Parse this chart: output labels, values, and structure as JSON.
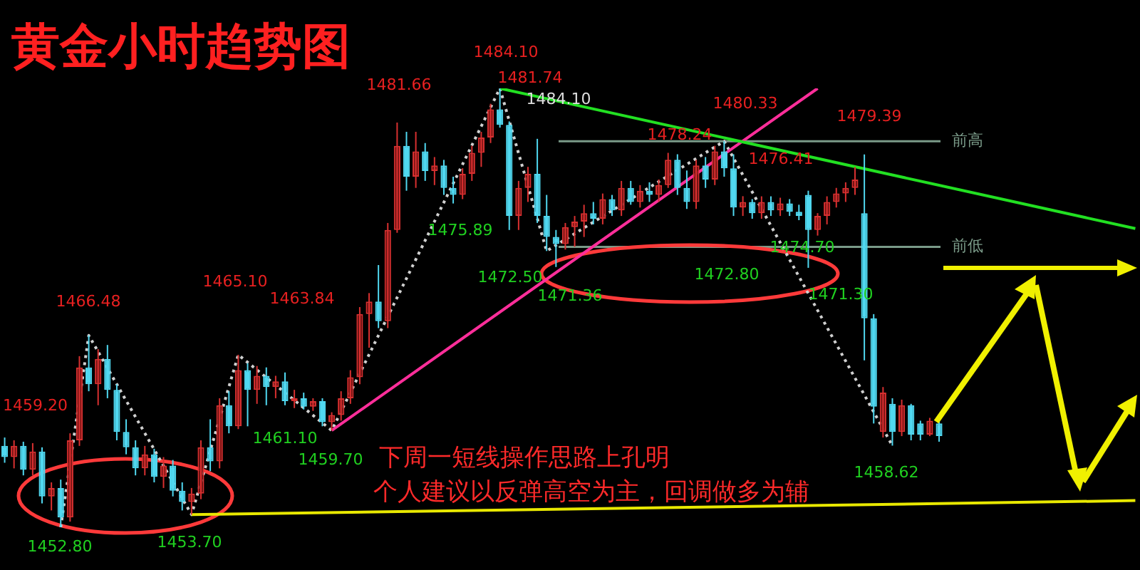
{
  "chart_data": {
    "type": "candlestick",
    "title": "黄金小时趋势图",
    "tick_labels": false,
    "categories": [
      null,
      null,
      null,
      null,
      null,
      null,
      null,
      null,
      null,
      null,
      null,
      null,
      null,
      null,
      null,
      null,
      null,
      null,
      null,
      null,
      null,
      null,
      null,
      null,
      null,
      null,
      null,
      null,
      null,
      null,
      null,
      null,
      null,
      null,
      null,
      null,
      null,
      null,
      null,
      null,
      null,
      null,
      null,
      null,
      null,
      null,
      null,
      null,
      null,
      null,
      null,
      null,
      null,
      null,
      null,
      null,
      null,
      null,
      null,
      null,
      null,
      null,
      null,
      null,
      null,
      null,
      null,
      null,
      null,
      null,
      null,
      null,
      null,
      null,
      null,
      null,
      null,
      null,
      null,
      null,
      null,
      null,
      null,
      null,
      null,
      null,
      null,
      null,
      null,
      null,
      null,
      null,
      null,
      null,
      null,
      null,
      null,
      null,
      null,
      null,
      null,
      null,
      null,
      null,
      null,
      null,
      null,
      null,
      null,
      null,
      null,
      null,
      null,
      null,
      null,
      null,
      null,
      null,
      null,
      null,
      null,
      null
    ],
    "ohlc": [
      [
        1458.6,
        1459.2,
        1457.4,
        1457.8
      ],
      [
        1457.8,
        1459.0,
        1457.0,
        1458.6
      ],
      [
        1458.6,
        1458.9,
        1456.5,
        1456.9
      ],
      [
        1456.9,
        1458.8,
        1456.5,
        1458.2
      ],
      [
        1458.2,
        1458.5,
        1454.5,
        1455.0
      ],
      [
        1455.0,
        1456.0,
        1454.0,
        1455.6
      ],
      [
        1455.6,
        1456.2,
        1452.8,
        1453.5
      ],
      [
        1453.5,
        1459.5,
        1453.2,
        1459.0
      ],
      [
        1459.0,
        1465.0,
        1458.6,
        1464.2
      ],
      [
        1464.2,
        1466.48,
        1462.5,
        1463.0
      ],
      [
        1463.0,
        1465.5,
        1461.5,
        1464.8
      ],
      [
        1464.8,
        1465.8,
        1462.0,
        1462.6
      ],
      [
        1462.6,
        1463.0,
        1459.0,
        1459.6
      ],
      [
        1459.6,
        1460.5,
        1458.0,
        1458.5
      ],
      [
        1458.5,
        1459.0,
        1456.5,
        1457.0
      ],
      [
        1457.0,
        1458.6,
        1456.5,
        1458.0
      ],
      [
        1458.0,
        1458.4,
        1456.0,
        1456.4
      ],
      [
        1456.4,
        1457.8,
        1455.6,
        1457.2
      ],
      [
        1457.2,
        1457.6,
        1455.0,
        1455.4
      ],
      [
        1455.4,
        1456.0,
        1454.0,
        1454.6
      ],
      [
        1454.6,
        1455.6,
        1453.7,
        1455.2
      ],
      [
        1455.2,
        1459.0,
        1454.8,
        1458.5
      ],
      [
        1458.5,
        1460.5,
        1456.8,
        1457.5
      ],
      [
        1457.5,
        1462.0,
        1457.0,
        1461.5
      ],
      [
        1461.5,
        1462.5,
        1459.5,
        1460.0
      ],
      [
        1460.0,
        1465.1,
        1459.8,
        1464.0
      ],
      [
        1464.0,
        1464.5,
        1460.0,
        1462.6
      ],
      [
        1462.6,
        1464.3,
        1461.6,
        1463.6
      ],
      [
        1463.6,
        1464.2,
        1461.5,
        1462.8
      ],
      [
        1462.8,
        1463.6,
        1462.0,
        1463.2
      ],
      [
        1463.2,
        1463.84,
        1461.5,
        1461.8
      ],
      [
        1461.8,
        1462.6,
        1461.3,
        1462.0
      ],
      [
        1462.0,
        1462.4,
        1461.2,
        1461.4
      ],
      [
        1461.4,
        1462.0,
        1461.1,
        1461.8
      ],
      [
        1461.8,
        1462.0,
        1460.0,
        1460.3
      ],
      [
        1460.3,
        1461.0,
        1459.7,
        1460.8
      ],
      [
        1460.8,
        1462.5,
        1460.4,
        1462.0
      ],
      [
        1462.0,
        1464.0,
        1461.6,
        1463.5
      ],
      [
        1463.5,
        1468.5,
        1463.0,
        1468.0
      ],
      [
        1468.0,
        1469.5,
        1465.6,
        1468.9
      ],
      [
        1468.9,
        1471.5,
        1467.0,
        1467.5
      ],
      [
        1467.5,
        1474.5,
        1467.0,
        1474.0
      ],
      [
        1474.0,
        1481.66,
        1473.8,
        1480.0
      ],
      [
        1480.0,
        1481.0,
        1476.8,
        1477.8
      ],
      [
        1477.8,
        1481.0,
        1477.0,
        1479.6
      ],
      [
        1479.6,
        1480.2,
        1477.5,
        1478.2
      ],
      [
        1478.2,
        1479.2,
        1477.2,
        1478.6
      ],
      [
        1478.6,
        1479.0,
        1476.5,
        1477.0
      ],
      [
        1477.0,
        1477.8,
        1475.89,
        1476.5
      ],
      [
        1476.5,
        1478.4,
        1476.2,
        1478.0
      ],
      [
        1478.0,
        1480.0,
        1477.5,
        1479.5
      ],
      [
        1479.5,
        1481.0,
        1478.5,
        1480.6
      ],
      [
        1480.6,
        1483.0,
        1480.2,
        1482.6
      ],
      [
        1482.6,
        1484.1,
        1481.3,
        1481.5
      ],
      [
        1481.5,
        1481.74,
        1474.0,
        1475.0
      ],
      [
        1475.0,
        1477.5,
        1474.0,
        1477.0
      ],
      [
        1477.0,
        1478.5,
        1476.0,
        1478.0
      ],
      [
        1478.0,
        1480.5,
        1474.5,
        1475.0
      ],
      [
        1475.0,
        1476.5,
        1472.5,
        1473.5
      ],
      [
        1473.5,
        1474.0,
        1471.36,
        1473.0
      ],
      [
        1473.0,
        1474.5,
        1472.6,
        1474.2
      ],
      [
        1474.2,
        1475.0,
        1472.8,
        1474.6
      ],
      [
        1474.6,
        1475.8,
        1473.5,
        1475.2
      ],
      [
        1475.2,
        1476.0,
        1474.4,
        1474.8
      ],
      [
        1474.8,
        1476.6,
        1474.4,
        1476.2
      ],
      [
        1476.2,
        1476.5,
        1475.0,
        1475.4
      ],
      [
        1475.4,
        1477.5,
        1475.0,
        1477.0
      ],
      [
        1477.0,
        1477.5,
        1475.8,
        1476.0
      ],
      [
        1476.0,
        1477.2,
        1475.6,
        1476.8
      ],
      [
        1476.8,
        1477.4,
        1476.0,
        1476.5
      ],
      [
        1476.5,
        1477.6,
        1476.0,
        1477.2
      ],
      [
        1477.2,
        1479.5,
        1477.0,
        1479.0
      ],
      [
        1479.0,
        1479.4,
        1476.5,
        1477.0
      ],
      [
        1477.0,
        1478.24,
        1475.5,
        1476.0
      ],
      [
        1476.0,
        1479.0,
        1475.5,
        1478.6
      ],
      [
        1478.6,
        1479.2,
        1477.0,
        1477.6
      ],
      [
        1477.6,
        1480.0,
        1477.2,
        1479.6
      ],
      [
        1479.6,
        1480.33,
        1477.8,
        1478.4
      ],
      [
        1478.4,
        1479.4,
        1475.0,
        1475.6
      ],
      [
        1475.6,
        1476.41,
        1475.0,
        1476.0
      ],
      [
        1476.0,
        1476.2,
        1474.8,
        1475.2
      ],
      [
        1475.2,
        1476.4,
        1474.8,
        1476.0
      ],
      [
        1476.0,
        1476.4,
        1475.0,
        1475.4
      ],
      [
        1475.4,
        1476.3,
        1475.0,
        1475.9
      ],
      [
        1475.9,
        1476.2,
        1475.0,
        1475.3
      ],
      [
        1475.3,
        1475.8,
        1474.7,
        1475.0
      ],
      [
        1476.5,
        1476.8,
        1471.3,
        1474.0
      ],
      [
        1474.0,
        1475.2,
        1473.6,
        1475.0
      ],
      [
        1475.0,
        1476.4,
        1474.4,
        1476.0
      ],
      [
        1476.0,
        1477.0,
        1475.6,
        1476.6
      ],
      [
        1476.6,
        1477.4,
        1476.0,
        1477.0
      ],
      [
        1477.0,
        1478.5,
        1476.5,
        1477.6
      ],
      [
        1475.2,
        1479.39,
        1464.7,
        1467.7
      ],
      [
        1467.7,
        1468.0,
        1460.2,
        1461.4
      ],
      [
        1459.6,
        1462.8,
        1459.2,
        1462.4
      ],
      [
        1461.6,
        1462.0,
        1458.62,
        1459.6
      ],
      [
        1459.6,
        1461.9,
        1459.3,
        1461.5
      ],
      [
        1461.5,
        1461.6,
        1459.0,
        1459.4
      ],
      [
        1460.2,
        1460.4,
        1459.0,
        1459.4
      ],
      [
        1459.4,
        1460.6,
        1459.3,
        1460.4
      ],
      [
        1460.2,
        1460.4,
        1458.9,
        1459.3
      ],
      null,
      null,
      null,
      null,
      null,
      null,
      null,
      null,
      null,
      null,
      null,
      null,
      null,
      null,
      null,
      null,
      null,
      null,
      null,
      null,
      null
    ],
    "series": [
      {
        "type": "line",
        "color": "#22e022",
        "values": [
          null,
          null,
          null,
          null,
          null,
          null,
          null,
          null,
          null,
          null,
          null,
          null,
          null,
          null,
          null,
          null,
          null,
          null,
          null,
          null,
          null,
          null,
          null,
          null,
          null,
          null,
          null,
          null,
          null,
          null,
          null,
          null,
          null,
          null,
          null,
          null,
          null,
          null,
          null,
          null,
          null,
          null,
          null,
          null,
          null,
          null,
          null,
          null,
          null,
          null,
          null,
          null,
          null,
          1484.1,
          null,
          null,
          null,
          null,
          null,
          null,
          null,
          null,
          null,
          null,
          null,
          null,
          null,
          null,
          null,
          null,
          null,
          null,
          null,
          null,
          null,
          null,
          null,
          null,
          null,
          null,
          null,
          null,
          null,
          null,
          null,
          null,
          null,
          null,
          null,
          null,
          null,
          null,
          null,
          null,
          null,
          null,
          null,
          null,
          null,
          null,
          null,
          null,
          null,
          null,
          null,
          null,
          null,
          null,
          null,
          null,
          null,
          null,
          null,
          null,
          null,
          null,
          null,
          null,
          null,
          null,
          null,
          1474.1
        ]
      },
      {
        "type": "line",
        "color": "#ff2e9a",
        "values": [
          null,
          null,
          null,
          null,
          null,
          null,
          null,
          null,
          null,
          null,
          null,
          null,
          null,
          null,
          null,
          null,
          null,
          null,
          null,
          null,
          null,
          null,
          null,
          null,
          null,
          null,
          null,
          null,
          null,
          null,
          null,
          null,
          null,
          null,
          null,
          1459.7,
          null,
          null,
          null,
          null,
          null,
          null,
          null,
          null,
          null,
          null,
          null,
          null,
          null,
          null,
          null,
          null,
          null,
          null,
          null,
          null,
          null,
          null,
          null,
          null,
          null,
          null,
          null,
          null,
          null,
          null,
          null,
          null,
          null,
          null,
          null,
          null,
          null,
          null,
          null,
          null,
          null,
          null,
          null,
          null,
          null,
          null,
          null,
          null,
          null,
          null,
          null,
          1484.1,
          null,
          null,
          null,
          null,
          null,
          null,
          null,
          null,
          null,
          null,
          null,
          null,
          null,
          null,
          null,
          null,
          null,
          null,
          null,
          null,
          null,
          null,
          null,
          null,
          null,
          null,
          null,
          null,
          null,
          null,
          null,
          null,
          null,
          null
        ]
      },
      {
        "type": "line",
        "color": "#e8e800",
        "values": [
          null,
          null,
          null,
          null,
          null,
          null,
          null,
          null,
          null,
          null,
          null,
          null,
          null,
          null,
          null,
          null,
          null,
          null,
          null,
          null,
          1453.7,
          null,
          null,
          null,
          null,
          null,
          null,
          null,
          null,
          null,
          null,
          null,
          null,
          null,
          null,
          null,
          null,
          null,
          null,
          null,
          null,
          null,
          null,
          null,
          null,
          null,
          null,
          null,
          null,
          null,
          null,
          null,
          null,
          null,
          null,
          null,
          null,
          null,
          null,
          null,
          null,
          null,
          null,
          null,
          null,
          null,
          null,
          null,
          null,
          null,
          null,
          null,
          null,
          null,
          null,
          null,
          null,
          null,
          null,
          null,
          null,
          null,
          null,
          null,
          null,
          null,
          null,
          null,
          null,
          null,
          null,
          null,
          null,
          null,
          null,
          null,
          null,
          null,
          null,
          null,
          null,
          null,
          null,
          null,
          null,
          null,
          null,
          null,
          null,
          null,
          null,
          null,
          null,
          null,
          null,
          null,
          null,
          null,
          null,
          null,
          null,
          1454.7
        ]
      },
      {
        "type": "line",
        "color": "#d0d0d0",
        "line_style": "dotted",
        "values": [
          null,
          null,
          null,
          null,
          null,
          null,
          1452.8,
          null,
          null,
          1466.48,
          null,
          null,
          null,
          null,
          null,
          null,
          null,
          null,
          null,
          null,
          1453.7,
          null,
          null,
          null,
          null,
          1465.1,
          null,
          null,
          null,
          null,
          null,
          null,
          null,
          null,
          null,
          1459.7,
          null,
          null,
          null,
          null,
          null,
          null,
          null,
          null,
          null,
          null,
          null,
          null,
          null,
          null,
          null,
          null,
          null,
          1484.1,
          null,
          null,
          null,
          null,
          1472.5,
          null,
          null,
          null,
          null,
          null,
          null,
          null,
          null,
          null,
          null,
          null,
          null,
          null,
          null,
          null,
          null,
          null,
          null,
          1480.33,
          null,
          null,
          null,
          null,
          null,
          null,
          null,
          null,
          null,
          null,
          null,
          null,
          null,
          null,
          null,
          null,
          null,
          1458.62,
          null,
          null,
          null,
          null,
          null,
          null,
          null,
          null,
          null,
          null,
          null,
          null,
          null,
          null,
          null,
          null,
          null,
          null,
          null,
          null,
          null,
          null,
          null,
          null,
          null,
          null
        ]
      }
    ],
    "ref_lines": [
      {
        "axis": "y",
        "value": 1480.33,
        "label": "前高",
        "color": "#7a9a88"
      },
      {
        "axis": "y",
        "value": 1472.8,
        "label": "前低",
        "color": "#7a9a88"
      }
    ],
    "annotations": [
      "下周一短线操作思路上孔明",
      "个人建议以反弹高空为主，回调做多为辅",
      "1459.20",
      "1452.80",
      "1466.48",
      "1453.70",
      "1465.10",
      "1463.84",
      "1461.10",
      "1459.70",
      "1481.66",
      "1475.89",
      "1484.10",
      "1481.74",
      "1484.10",
      "1472.50",
      "1471.36",
      "1478.24",
      "1480.33",
      "1476.41",
      "1479.39",
      "1474.70",
      "1472.80",
      "1471.30",
      "1458.62"
    ]
  }
}
